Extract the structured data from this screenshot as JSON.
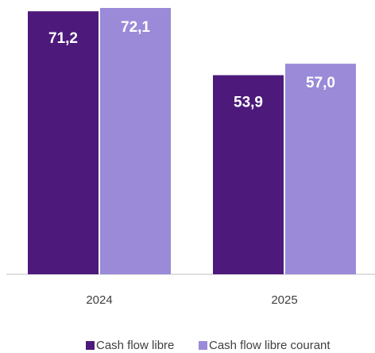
{
  "chart_data": {
    "type": "bar",
    "categories": [
      "2024",
      "2025"
    ],
    "series": [
      {
        "name": "Cash flow libre",
        "color": "#4d1a7b",
        "values": [
          71.2,
          53.9
        ],
        "value_labels": [
          "71,2",
          "53,9"
        ]
      },
      {
        "name": "Cash flow libre courant",
        "color": "#9a8ad8",
        "values": [
          72.1,
          57.0
        ],
        "value_labels": [
          "72,1",
          "57,0"
        ]
      }
    ],
    "ylim": [
      0,
      72.1
    ]
  }
}
